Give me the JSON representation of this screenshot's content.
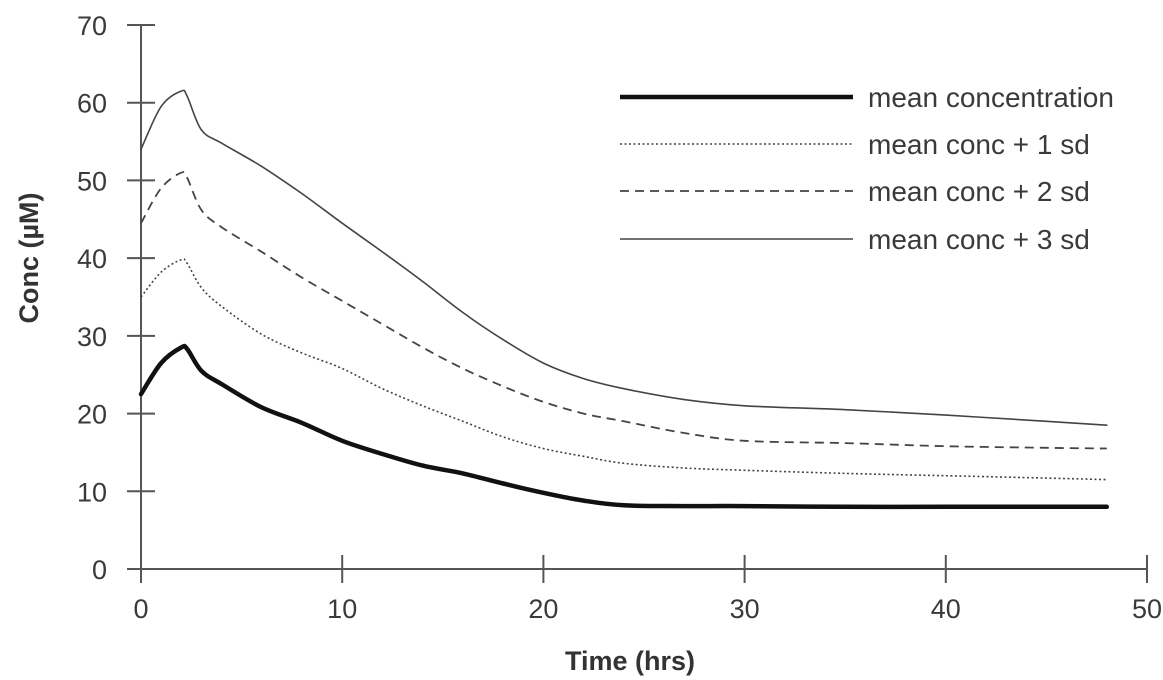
{
  "chart_data": {
    "type": "line",
    "title": "",
    "xlabel": "Time (hrs)",
    "ylabel": "Conc (µM)",
    "xlim": [
      0,
      50
    ],
    "ylim": [
      0,
      70
    ],
    "x_ticks": [
      "0",
      "10",
      "20",
      "30",
      "40",
      "50"
    ],
    "y_ticks": [
      "0",
      "10",
      "20",
      "30",
      "40",
      "50",
      "60",
      "70"
    ],
    "grid": false,
    "legend_position": "top-right",
    "x": [
      0,
      1,
      2,
      2.3,
      3,
      4,
      6,
      8,
      10,
      12,
      14,
      16,
      18,
      20,
      22,
      24,
      27,
      30,
      35,
      40,
      45,
      48
    ],
    "series": [
      {
        "name": "mean concentration",
        "line_style": "thick solid",
        "color": "#111111",
        "values": [
          22.5,
          26.5,
          28.5,
          28.3,
          25.5,
          23.8,
          20.8,
          18.8,
          16.5,
          14.8,
          13.3,
          12.3,
          11.0,
          9.8,
          8.8,
          8.2,
          8.1,
          8.1,
          8.0,
          8.0,
          8.0,
          8.0
        ]
      },
      {
        "name": "mean conc + 1 sd",
        "line_style": "dotted",
        "color": "#444444",
        "values": [
          35.0,
          38.2,
          39.8,
          39.3,
          36.2,
          33.8,
          30.2,
          27.8,
          25.8,
          23.2,
          21.0,
          19.0,
          17.0,
          15.5,
          14.5,
          13.6,
          13.0,
          12.7,
          12.3,
          12.0,
          11.7,
          11.5
        ]
      },
      {
        "name": "mean conc + 2 sd",
        "line_style": "dashed",
        "color": "#444444",
        "values": [
          44.5,
          49.0,
          51.0,
          50.3,
          46.2,
          44.0,
          40.8,
          37.5,
          34.5,
          31.5,
          28.5,
          25.8,
          23.5,
          21.5,
          20.0,
          19.0,
          17.5,
          16.5,
          16.2,
          15.8,
          15.6,
          15.5
        ]
      },
      {
        "name": "mean conc + 3 sd",
        "line_style": "thin solid",
        "color": "#444444",
        "values": [
          54.0,
          59.5,
          61.5,
          60.8,
          56.5,
          54.8,
          51.8,
          48.3,
          44.5,
          40.8,
          37.0,
          33.0,
          29.5,
          26.5,
          24.5,
          23.2,
          21.8,
          21.0,
          20.5,
          19.8,
          19.0,
          18.5
        ]
      }
    ]
  }
}
